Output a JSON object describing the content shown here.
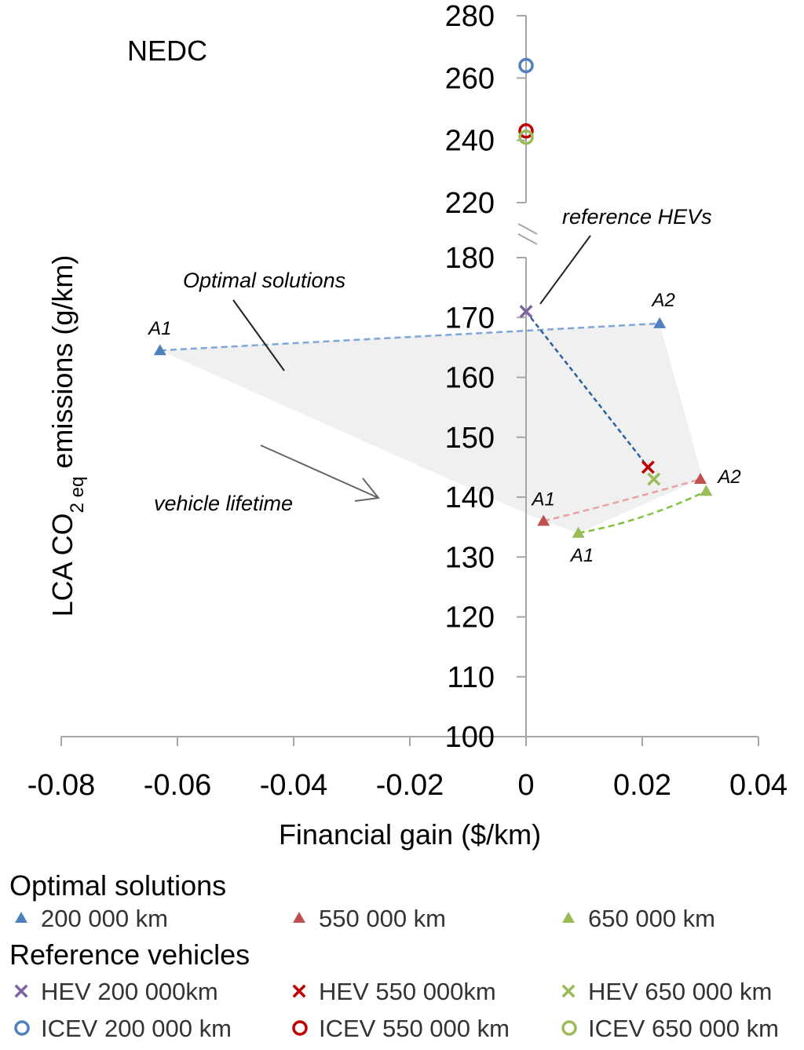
{
  "chart_data": {
    "type": "scatter",
    "title": "NEDC",
    "xlabel": "Financial gain ($/km)",
    "ylabel": {
      "prefix": "LCA CO",
      "sub": "2 eq",
      "suffix": " emissions (g/km)"
    },
    "xlim": [
      -0.08,
      0.04
    ],
    "x_ticks": [
      "-0.08",
      "-0.06",
      "-0.04",
      "-0.02",
      "0",
      "0.02",
      "0.04"
    ],
    "y_ticks_lower": [
      "100",
      "110",
      "120",
      "130",
      "140",
      "150",
      "160",
      "170",
      "180"
    ],
    "y_ticks_upper": [
      "220",
      "240",
      "260",
      "280"
    ],
    "y_axis_break": [
      180,
      220
    ],
    "optimal_series": [
      {
        "name": "200 000 km",
        "color": "#4f81bd",
        "line_color": "#7ea6d8",
        "points": [
          {
            "x": -0.063,
            "y": 164.5,
            "label": "A1"
          },
          {
            "x": 0.023,
            "y": 169,
            "label": "A2"
          }
        ]
      },
      {
        "name": "550 000 km",
        "color": "#c0504d",
        "line_color": "#e6a3a1",
        "points": [
          {
            "x": 0.003,
            "y": 136,
            "label": "A1"
          },
          {
            "x": 0.03,
            "y": 143,
            "label": "A2"
          }
        ]
      },
      {
        "name": "650 000 km",
        "color": "#9bbb59",
        "line_color": "#7fc43a",
        "points": [
          {
            "x": 0.009,
            "y": 134,
            "label": "A1"
          },
          {
            "x": 0.031,
            "y": 141,
            "label": "A2"
          }
        ]
      }
    ],
    "hev_series": [
      {
        "name": "HEV 200 000km",
        "color": "#8064a2",
        "x": 0,
        "y": 171
      },
      {
        "name": "HEV 550 000km",
        "color": "#c00000",
        "x": 0.021,
        "y": 145
      },
      {
        "name": "HEV 650 000 km",
        "color": "#9bbb59",
        "x": 0.022,
        "y": 143
      }
    ],
    "icev_series": [
      {
        "name": "ICEV 200 000 km",
        "color": "#4f81bd",
        "x": 0,
        "y": 264
      },
      {
        "name": "ICEV 550 000 km",
        "color": "#c00000",
        "x": 0,
        "y": 243
      },
      {
        "name": "ICEV 650 000 km",
        "color": "#9bbb59",
        "x": 0,
        "y": 241
      }
    ],
    "annotations": {
      "optimal": "Optimal solutions",
      "reference": "reference HEVs",
      "lifetime": "vehicle lifetime"
    },
    "legend": {
      "optimal_heading": "Optimal solutions",
      "reference_heading": "Reference vehicles",
      "grid_color": "#aaaaaa"
    }
  }
}
